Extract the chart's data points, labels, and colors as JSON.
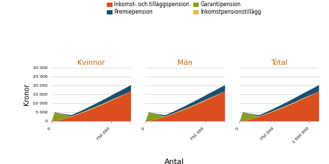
{
  "title_kvinnor": "Kvinnor",
  "title_man": "Män",
  "title_total": "Total",
  "xlabel": "Antal",
  "ylabel": "Kronor",
  "legend_labels": [
    "Inkomst- och tilläggspension",
    "Premiepension",
    "Garantipension",
    "Inkomstpensionstillägg"
  ],
  "colors": [
    "#D94F1E",
    "#1B4F72",
    "#8B9A1A",
    "#E8B84B"
  ],
  "ylim": [
    0,
    30000
  ],
  "yticks": [
    0,
    5000,
    10000,
    15000,
    20000,
    25000,
    30000
  ],
  "ytick_labels": [
    "0",
    "5 000",
    "10 000",
    "15 000",
    "20 000",
    "25 000",
    "30 000"
  ],
  "xlim_kv": 1000000,
  "xlim_man": 1000000,
  "xlim_total": 1700000,
  "n_kv": 950000,
  "n_man": 950000,
  "n_total": 1600000,
  "background_color": "#ffffff",
  "grid_color": "#d0d0d0",
  "title_color": "#CC6600"
}
